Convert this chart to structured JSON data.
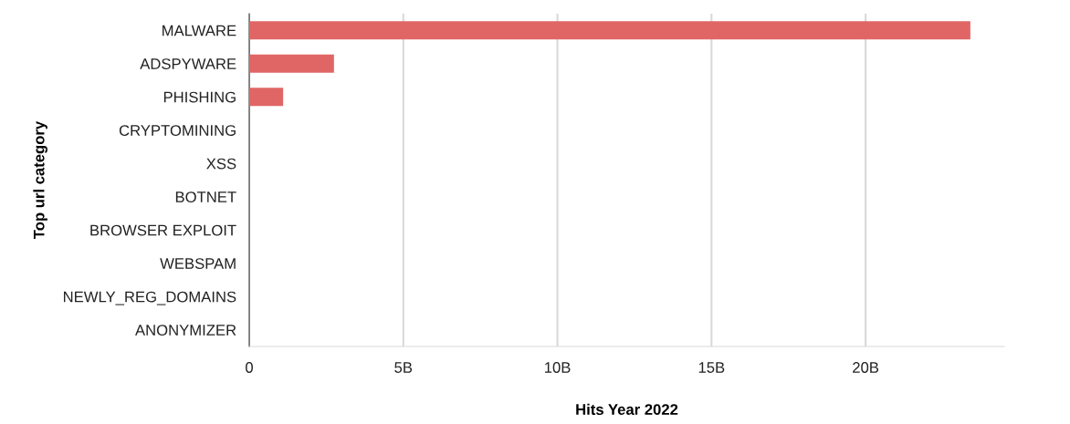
{
  "chart_data": {
    "type": "bar",
    "orientation": "horizontal",
    "xlabel": "Hits Year 2022",
    "ylabel": "Top url category",
    "categories": [
      "MALWARE",
      "ADSPYWARE",
      "PHISHING",
      "CRYPTOMINING",
      "XSS",
      "BOTNET",
      "BROWSER EXPLOIT",
      "WEBSPAM",
      "NEWLY_REG_DOMAINS",
      "ANONYMIZER"
    ],
    "values": [
      23.4,
      2.75,
      1.1,
      0,
      0,
      0,
      0,
      0,
      0,
      0
    ],
    "color": "#e06666",
    "xlim": [
      0,
      24.5
    ],
    "xticks": [
      {
        "value": 0,
        "label": "0"
      },
      {
        "value": 5,
        "label": "5B"
      },
      {
        "value": 10,
        "label": "10B"
      },
      {
        "value": 15,
        "label": "15B"
      },
      {
        "value": 20,
        "label": "20B"
      }
    ],
    "grid": "x"
  }
}
